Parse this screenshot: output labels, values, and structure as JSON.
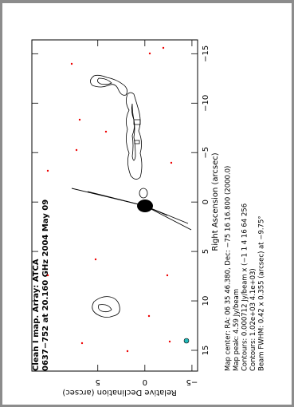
{
  "chart_data": {
    "type": "contour",
    "title": "Clean I map.  Array: ATCA",
    "subtitle": "0637−752 at 20.160 GHz 2004 May 09",
    "xlabel": "Relative Declination (arcsec)",
    "ylabel": "Right Ascension (arcsec)",
    "xlim": [
      12,
      -5.6
    ],
    "ylim": [
      -16.4,
      17.1
    ],
    "xticks": [
      5,
      0,
      {
        "value": -5,
        "label": "−5"
      }
    ],
    "yticks": [
      {
        "value": -15,
        "label": "−15"
      },
      {
        "value": -10,
        "label": "−10"
      },
      {
        "value": -5,
        "label": "−5"
      },
      0,
      5,
      10,
      15
    ],
    "annotations": [
      "Map center:  RA: 06 35 46.380,  Dec: −75 16 16.800 (2000.0)",
      "Map peak: 4.59 Jy/beam",
      "Contours: 0.000712 Jy/beam x (−1 1 4 16 64 256",
      "Contours: 1.02e+03 4.1e+03)",
      "Beam FWHM: 0.42 x 0.355 (arcsec) at −9.75°"
    ]
  }
}
